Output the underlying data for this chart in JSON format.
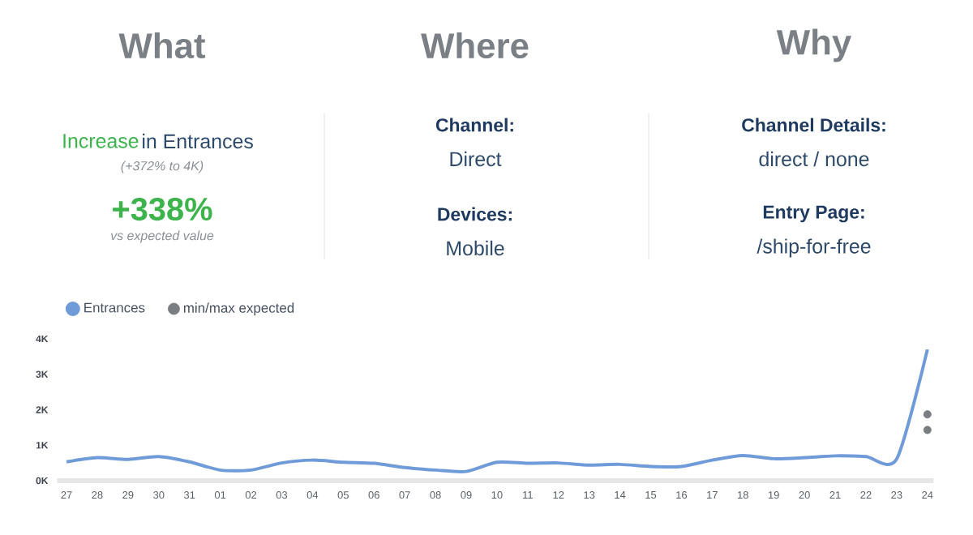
{
  "chart_data": {
    "type": "line",
    "annotations": [
      "What",
      "Where",
      "Why",
      "Increase",
      "in Entrances",
      "(+372% to 4K)",
      "+338%",
      "vs expected value",
      "Channel:",
      "Direct",
      "Devices:",
      "Mobile",
      "Channel Details:",
      "direct / none",
      "Entry Page:",
      "/ship-for-free"
    ],
    "categories": [
      "27",
      "28",
      "29",
      "30",
      "31",
      "01",
      "02",
      "03",
      "04",
      "05",
      "06",
      "07",
      "08",
      "09",
      "10",
      "11",
      "12",
      "13",
      "14",
      "15",
      "16",
      "17",
      "18",
      "19",
      "20",
      "21",
      "22",
      "23",
      "24"
    ],
    "series": [
      {
        "name": "Entrances",
        "color": "#6f9bd8",
        "marker": "none",
        "values": [
          0.53,
          0.65,
          0.6,
          0.68,
          0.53,
          0.3,
          0.3,
          0.5,
          0.58,
          0.52,
          0.49,
          0.37,
          0.3,
          0.26,
          0.52,
          0.49,
          0.5,
          0.44,
          0.46,
          0.4,
          0.4,
          0.58,
          0.71,
          0.62,
          0.65,
          0.7,
          0.68,
          0.61,
          3.7
        ]
      },
      {
        "name": "min/max expected",
        "type": "scatter",
        "color": "#7a7d82",
        "marker": "circle",
        "x": [
          "24",
          "24"
        ],
        "values": [
          1.87,
          1.43
        ]
      }
    ],
    "ylim": [
      0,
      4
    ],
    "yticks": [
      {
        "value": 0,
        "label": "0K"
      },
      {
        "value": 1,
        "label": "1K"
      },
      {
        "value": 2,
        "label": "2K"
      },
      {
        "value": 3,
        "label": "3K"
      },
      {
        "value": 4,
        "label": "4K"
      }
    ],
    "legend": "top left",
    "grid": false,
    "line_style": "solid"
  }
}
